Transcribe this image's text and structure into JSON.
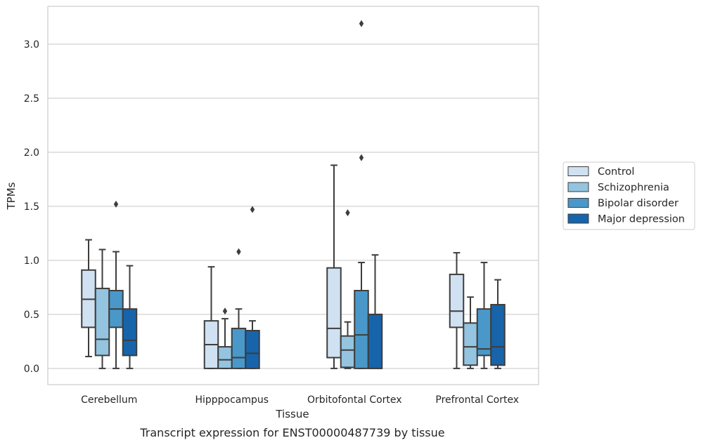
{
  "caption": "Transcript expression for ENST00000487739 by tissue",
  "chart_data": {
    "type": "boxplot",
    "xlabel": "Tissue",
    "ylabel": "TPMs",
    "ylim": [
      -0.15,
      3.35
    ],
    "yticks": [
      "0.0",
      "0.5",
      "1.0",
      "1.5",
      "2.0",
      "2.5",
      "3.0"
    ],
    "grid": "horizontal",
    "legend_position": "right",
    "categories": [
      "Cerebellum",
      "Hipppocampus",
      "Orbitofontal Cortex",
      "Prefrontal Cortex"
    ],
    "series": [
      {
        "name": "Control",
        "color": "#d0e1f2",
        "boxes": [
          {
            "whislo": 0.11,
            "q1": 0.38,
            "med": 0.64,
            "q3": 0.91,
            "whishi": 1.19,
            "fliers": []
          },
          {
            "whislo": 0.0,
            "q1": 0.0,
            "med": 0.22,
            "q3": 0.44,
            "whishi": 0.94,
            "fliers": []
          },
          {
            "whislo": 0.0,
            "q1": 0.1,
            "med": 0.37,
            "q3": 0.93,
            "whishi": 1.88,
            "fliers": []
          },
          {
            "whislo": 0.0,
            "q1": 0.38,
            "med": 0.53,
            "q3": 0.87,
            "whishi": 1.07,
            "fliers": []
          }
        ]
      },
      {
        "name": "Schizophrenia",
        "color": "#94c4df",
        "boxes": [
          {
            "whislo": 0.0,
            "q1": 0.12,
            "med": 0.27,
            "q3": 0.74,
            "whishi": 1.1,
            "fliers": []
          },
          {
            "whislo": 0.0,
            "q1": 0.0,
            "med": 0.08,
            "q3": 0.2,
            "whishi": 0.46,
            "fliers": [
              0.53
            ]
          },
          {
            "whislo": 0.0,
            "q1": 0.01,
            "med": 0.17,
            "q3": 0.3,
            "whishi": 0.43,
            "fliers": [
              1.44
            ]
          },
          {
            "whislo": 0.0,
            "q1": 0.03,
            "med": 0.2,
            "q3": 0.42,
            "whishi": 0.66,
            "fliers": []
          }
        ]
      },
      {
        "name": "Bipolar disorder",
        "color": "#4a98c9",
        "boxes": [
          {
            "whislo": 0.0,
            "q1": 0.38,
            "med": 0.55,
            "q3": 0.72,
            "whishi": 1.08,
            "fliers": [
              1.52
            ]
          },
          {
            "whislo": 0.0,
            "q1": 0.0,
            "med": 0.1,
            "q3": 0.37,
            "whishi": 0.55,
            "fliers": [
              1.08
            ]
          },
          {
            "whislo": 0.0,
            "q1": 0.0,
            "med": 0.31,
            "q3": 0.72,
            "whishi": 0.98,
            "fliers": [
              1.95,
              3.19
            ]
          },
          {
            "whislo": 0.0,
            "q1": 0.12,
            "med": 0.18,
            "q3": 0.55,
            "whishi": 0.98,
            "fliers": []
          }
        ]
      },
      {
        "name": "Major depression",
        "color": "#1764ab",
        "boxes": [
          {
            "whislo": 0.0,
            "q1": 0.12,
            "med": 0.26,
            "q3": 0.55,
            "whishi": 0.95,
            "fliers": []
          },
          {
            "whislo": 0.0,
            "q1": 0.0,
            "med": 0.14,
            "q3": 0.35,
            "whishi": 0.44,
            "fliers": [
              1.47
            ]
          },
          {
            "whislo": 0.0,
            "q1": 0.0,
            "med": 0.0,
            "q3": 0.5,
            "whishi": 1.05,
            "fliers": []
          },
          {
            "whislo": 0.0,
            "q1": 0.03,
            "med": 0.2,
            "q3": 0.59,
            "whishi": 0.82,
            "fliers": []
          }
        ]
      }
    ]
  }
}
